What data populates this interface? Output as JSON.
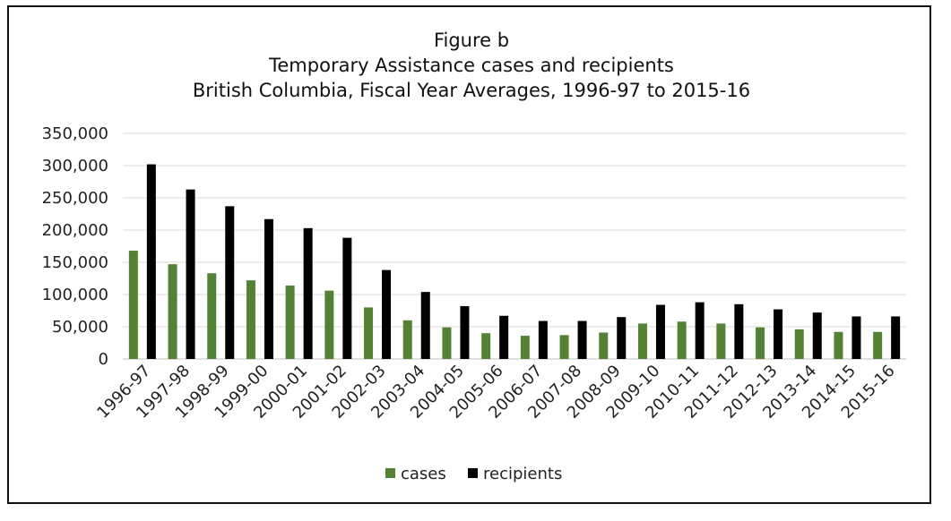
{
  "chart_data": {
    "type": "bar",
    "title_lines": [
      "Figure b",
      "Temporary Assistance cases and recipients",
      "British Columbia, Fiscal Year Averages, 1996-97 to 2015-16"
    ],
    "categories": [
      "1996-97",
      "1997-98",
      "1998-99",
      "1999-00",
      "2000-01",
      "2001-02",
      "2002-03",
      "2003-04",
      "2004-05",
      "2005-06",
      "2006-07",
      "2007-08",
      "2008-09",
      "2009-10",
      "2010-11",
      "2011-12",
      "2012-13",
      "2013-14",
      "2014-15",
      "2015-16"
    ],
    "series": [
      {
        "name": "cases",
        "color": "#548235",
        "values": [
          168000,
          147000,
          133000,
          122000,
          114000,
          106000,
          80000,
          60000,
          49000,
          40000,
          36000,
          37000,
          41000,
          55000,
          58000,
          55000,
          49000,
          46000,
          42000,
          42000
        ]
      },
      {
        "name": "recipients",
        "color": "#000000",
        "values": [
          302000,
          263000,
          237000,
          217000,
          203000,
          188000,
          138000,
          104000,
          82000,
          67000,
          59000,
          59000,
          65000,
          84000,
          88000,
          85000,
          77000,
          72000,
          66000,
          66000
        ]
      }
    ],
    "y_ticks": [
      "0",
      "50,000",
      "100,000",
      "150,000",
      "200,000",
      "250,000",
      "300,000",
      "350,000"
    ],
    "ylim": [
      0,
      350000
    ],
    "grid": true,
    "legend_position": "bottom"
  }
}
